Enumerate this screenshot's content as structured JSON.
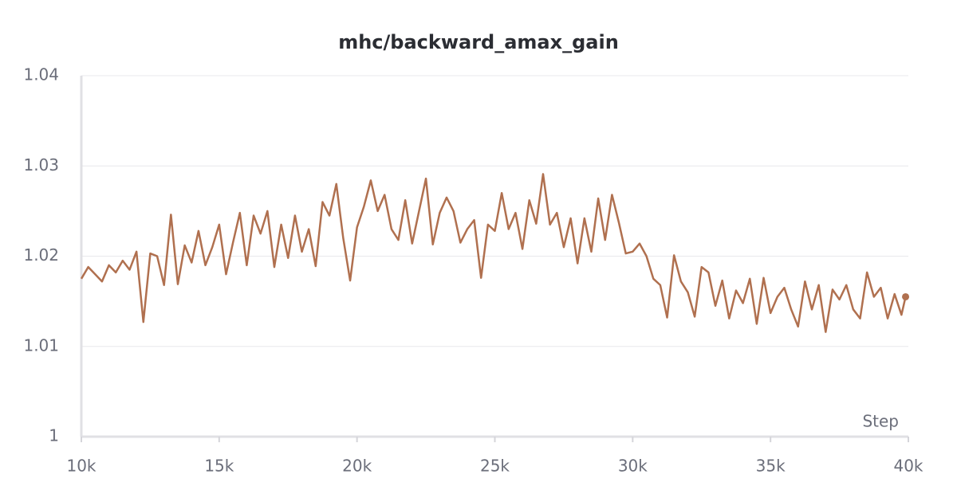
{
  "chart_data": {
    "type": "line",
    "title": "mhc/backward_amax_gain",
    "xlabel": "Step",
    "color": "#b0704f",
    "grid": true,
    "end_marker": true,
    "xlim": [
      10000,
      40000
    ],
    "xticks": [
      {
        "value": 10000,
        "label": "10k"
      },
      {
        "value": 15000,
        "label": "15k"
      },
      {
        "value": 20000,
        "label": "20k"
      },
      {
        "value": 25000,
        "label": "25k"
      },
      {
        "value": 30000,
        "label": "30k"
      },
      {
        "value": 35000,
        "label": "35k"
      },
      {
        "value": 40000,
        "label": "40k"
      }
    ],
    "ylim": [
      1,
      1.04
    ],
    "yticks": [
      1,
      1.01,
      1.02,
      1.03,
      1.04
    ],
    "x": [
      10000,
      10250,
      10500,
      10750,
      11000,
      11250,
      11500,
      11750,
      12000,
      12250,
      12500,
      12750,
      13000,
      13250,
      13500,
      13750,
      14000,
      14250,
      14500,
      14750,
      15000,
      15250,
      15500,
      15750,
      16000,
      16250,
      16500,
      16750,
      17000,
      17250,
      17500,
      17750,
      18000,
      18250,
      18500,
      18750,
      19000,
      19250,
      19500,
      19750,
      20000,
      20250,
      20500,
      20750,
      21000,
      21250,
      21500,
      21750,
      22000,
      22250,
      22500,
      22750,
      23000,
      23250,
      23500,
      23750,
      24000,
      24250,
      24500,
      24750,
      25000,
      25250,
      25500,
      25750,
      26000,
      26250,
      26500,
      26750,
      27000,
      27250,
      27500,
      27750,
      28000,
      28250,
      28500,
      28750,
      29000,
      29250,
      29500,
      29750,
      30000,
      30250,
      30500,
      30750,
      31000,
      31250,
      31500,
      31750,
      32000,
      32250,
      32500,
      32750,
      33000,
      33250,
      33500,
      33750,
      34000,
      34250,
      34500,
      34750,
      35000,
      35250,
      35500,
      35750,
      36000,
      36250,
      36500,
      36750,
      37000,
      37250,
      37500,
      37750,
      38000,
      38250,
      38500,
      38750,
      39000,
      39250,
      39500,
      39750,
      39900
    ],
    "values": [
      1.0175,
      1.0188,
      1.018,
      1.0172,
      1.019,
      1.0182,
      1.0195,
      1.0185,
      1.0205,
      1.0127,
      1.0203,
      1.02,
      1.0168,
      1.0246,
      1.0169,
      1.0212,
      1.0193,
      1.0228,
      1.019,
      1.021,
      1.0235,
      1.018,
      1.0215,
      1.0248,
      1.019,
      1.0245,
      1.0225,
      1.025,
      1.0188,
      1.0235,
      1.0198,
      1.0245,
      1.0205,
      1.023,
      1.0189,
      1.026,
      1.0245,
      1.028,
      1.022,
      1.0173,
      1.0232,
      1.0255,
      1.0284,
      1.025,
      1.0268,
      1.023,
      1.0218,
      1.0262,
      1.0214,
      1.025,
      1.0286,
      1.0213,
      1.0248,
      1.0265,
      1.025,
      1.0215,
      1.023,
      1.024,
      1.0176,
      1.0235,
      1.0228,
      1.027,
      1.023,
      1.0248,
      1.0208,
      1.0262,
      1.0236,
      1.0291,
      1.0235,
      1.0248,
      1.021,
      1.0242,
      1.0192,
      1.0242,
      1.0205,
      1.0264,
      1.0218,
      1.0268,
      1.0237,
      1.0203,
      1.0205,
      1.0214,
      1.02,
      1.0175,
      1.0168,
      1.0132,
      1.0201,
      1.0172,
      1.016,
      1.0133,
      1.0188,
      1.0182,
      1.0145,
      1.0173,
      1.0131,
      1.0162,
      1.0148,
      1.0175,
      1.0125,
      1.0176,
      1.0137,
      1.0155,
      1.0165,
      1.0141,
      1.0122,
      1.0172,
      1.0141,
      1.0168,
      1.0116,
      1.0163,
      1.0152,
      1.0168,
      1.0141,
      1.0131,
      1.0182,
      1.0155,
      1.0165,
      1.0131,
      1.0158,
      1.0135,
      1.0155
    ]
  }
}
